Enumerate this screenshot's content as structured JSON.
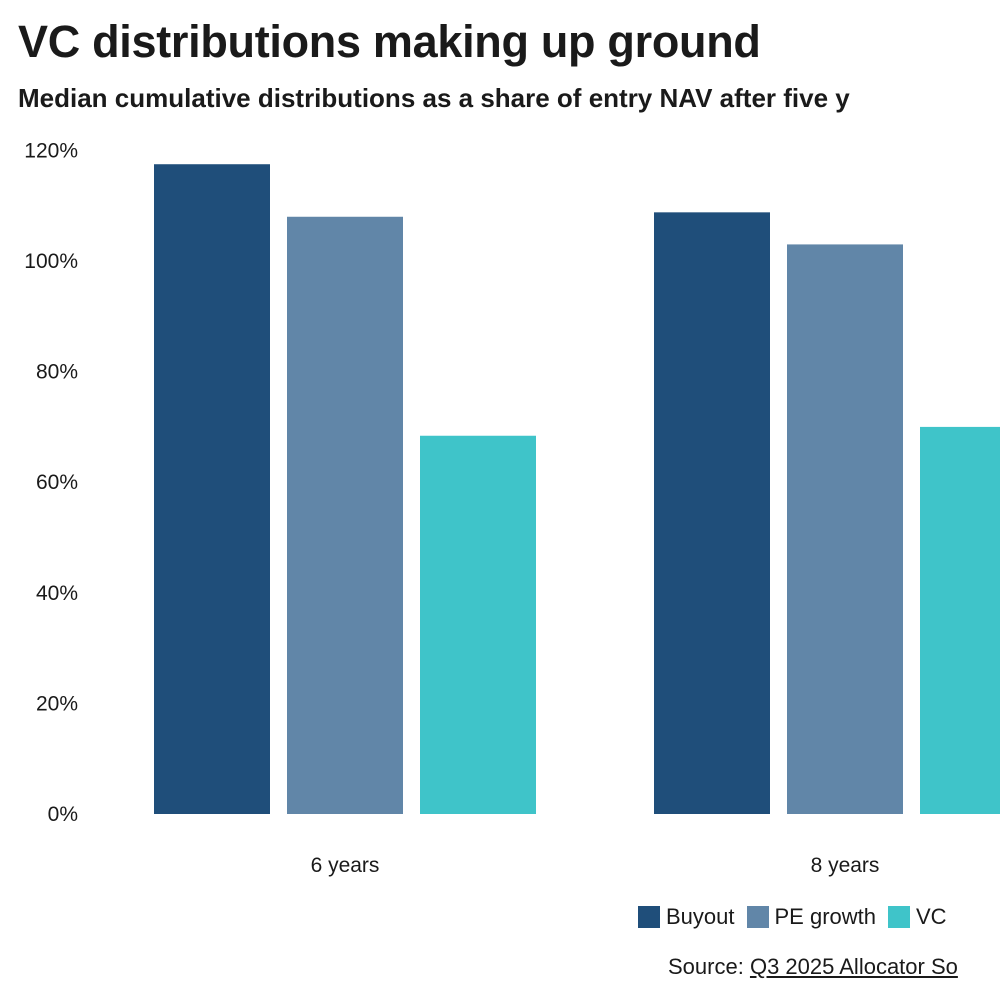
{
  "header": {
    "title": "VC distributions making up ground",
    "subtitle": "Median cumulative distributions as a share of entry NAV after five y"
  },
  "chart_data": {
    "type": "bar",
    "title": "VC distributions making up ground",
    "subtitle": "Median cumulative distributions as a share of entry NAV after five y",
    "categories": [
      "6 years",
      "8 years"
    ],
    "series": [
      {
        "name": "Buyout",
        "values": [
          117.5,
          108.8
        ],
        "color": "#1f4e7a"
      },
      {
        "name": "PE growth",
        "values": [
          108,
          103
        ],
        "color": "#6186a8"
      },
      {
        "name": "VC",
        "values": [
          68.4,
          70
        ],
        "color": "#3fc4c9"
      }
    ],
    "y_unit": "%",
    "ylim": [
      0,
      120
    ],
    "y_ticks": [
      0,
      20,
      40,
      60,
      80,
      100,
      120
    ],
    "y_tick_labels": [
      "0%",
      "20%",
      "40%",
      "60%",
      "80%",
      "100%",
      "120%"
    ],
    "xlabel": "",
    "ylabel": "",
    "grid": false,
    "legend_position": "bottom-right"
  },
  "source": {
    "label": "Source:",
    "link_text": "Q3 2025 Allocator So"
  }
}
